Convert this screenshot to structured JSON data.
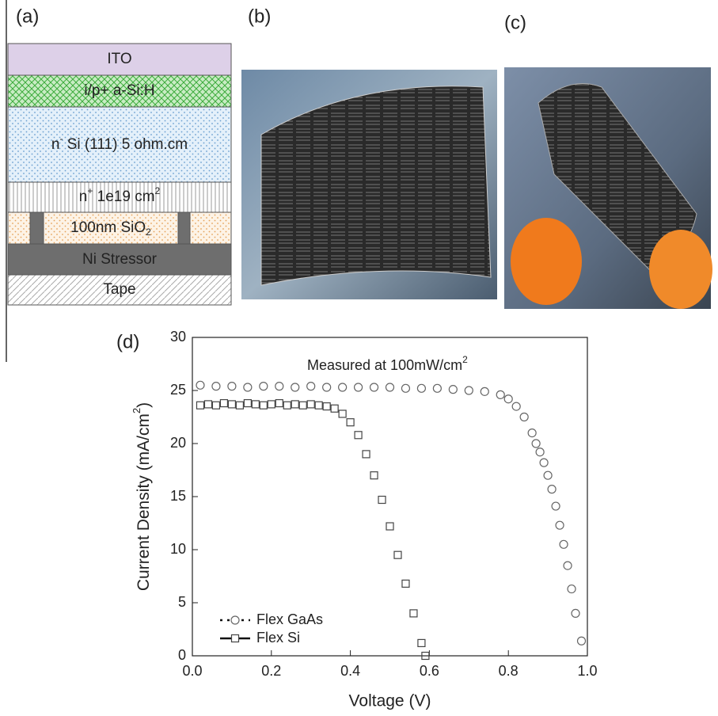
{
  "panels": {
    "a": "(a)",
    "b": "(b)",
    "c": "(c)",
    "d": "(d)"
  },
  "layers": [
    [
      "ITO"
    ],
    [
      "i/p+ a-Si:H"
    ],
    [
      "n",
      "-",
      " Si (111) 5 ohm.cm"
    ],
    [
      "n",
      "+",
      " 1e19 cm",
      "2"
    ],
    [
      "100nm SiO",
      "2"
    ],
    [
      "Ni Stressor"
    ],
    [
      "Tape"
    ]
  ],
  "chart_data": {
    "type": "scatter",
    "annotation": [
      "Measured at 100mW/cm",
      "2"
    ],
    "xlabel": "Voltage (V)",
    "ylabel": [
      "Current Density (mA/cm",
      "2",
      ")"
    ],
    "xlim": [
      0,
      1
    ],
    "ylim": [
      0,
      30
    ],
    "xticks": [
      {
        "value": 0,
        "label": "0.0"
      },
      0.2,
      0.4,
      0.6,
      0.8,
      {
        "value": 1,
        "label": "1.0"
      }
    ],
    "yticks": [
      0,
      5,
      10,
      15,
      20,
      25,
      30
    ],
    "legend": "lower left",
    "series": [
      {
        "name": "Flex GaAs",
        "marker": "circle",
        "color": "#666666",
        "x": [
          0.02,
          0.06,
          0.1,
          0.14,
          0.18,
          0.22,
          0.26,
          0.3,
          0.34,
          0.38,
          0.42,
          0.46,
          0.5,
          0.54,
          0.58,
          0.62,
          0.66,
          0.7,
          0.74,
          0.78,
          0.8,
          0.82,
          0.84,
          0.86,
          0.87,
          0.88,
          0.89,
          0.9,
          0.91,
          0.92,
          0.93,
          0.94,
          0.95,
          0.96,
          0.97,
          0.985
        ],
        "values": [
          25.5,
          25.4,
          25.4,
          25.3,
          25.4,
          25.4,
          25.3,
          25.4,
          25.3,
          25.3,
          25.3,
          25.3,
          25.3,
          25.2,
          25.2,
          25.2,
          25.1,
          25.0,
          24.9,
          24.6,
          24.2,
          23.5,
          22.5,
          21.0,
          20.0,
          19.2,
          18.2,
          17.0,
          15.7,
          14.1,
          12.3,
          10.5,
          8.5,
          6.3,
          4.0,
          1.4
        ]
      },
      {
        "name": "Flex Si",
        "marker": "square",
        "color": "#444444",
        "x": [
          0.02,
          0.04,
          0.06,
          0.08,
          0.1,
          0.12,
          0.14,
          0.16,
          0.18,
          0.2,
          0.22,
          0.24,
          0.26,
          0.28,
          0.3,
          0.32,
          0.34,
          0.36,
          0.38,
          0.4,
          0.42,
          0.44,
          0.46,
          0.48,
          0.5,
          0.52,
          0.54,
          0.56,
          0.58,
          0.59
        ],
        "values": [
          23.6,
          23.7,
          23.6,
          23.8,
          23.7,
          23.6,
          23.8,
          23.7,
          23.6,
          23.7,
          23.8,
          23.6,
          23.7,
          23.6,
          23.7,
          23.6,
          23.5,
          23.3,
          22.8,
          22.0,
          20.8,
          19.0,
          17.0,
          14.7,
          12.2,
          9.5,
          6.8,
          4.0,
          1.2,
          0.0
        ]
      }
    ]
  }
}
